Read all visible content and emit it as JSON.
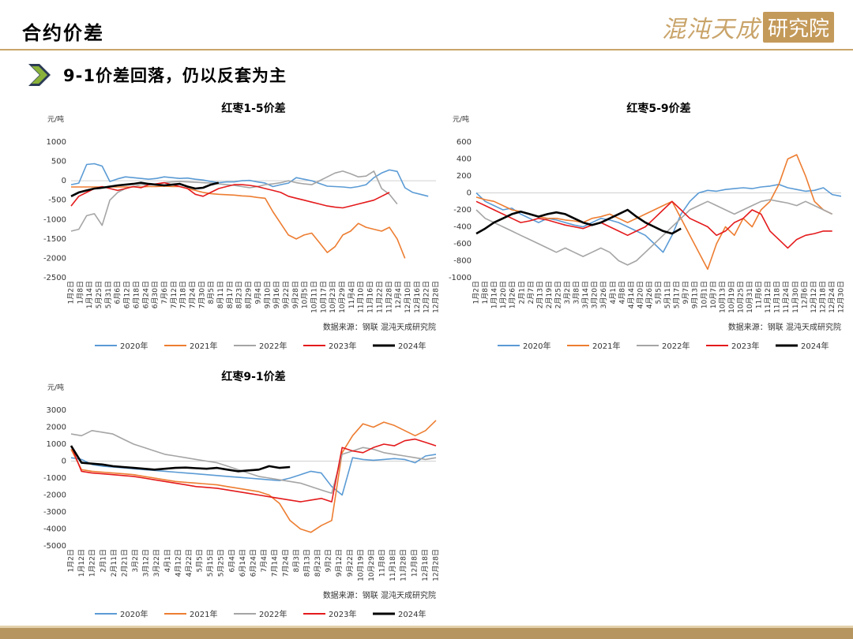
{
  "header": {
    "page_title": "合约价差",
    "logo_text": "混沌天成",
    "logo_box_text": "研究院",
    "subtitle": "9-1价差回落，仍以反套为主"
  },
  "colors": {
    "2020年": "#5b9bd5",
    "2021年": "#ed7d31",
    "2022年": "#a5a5a5",
    "2023年": "#e41a1c",
    "2024年": "#000000",
    "accent": "#c9a46a"
  },
  "chart_data": [
    {
      "type": "line",
      "title": "红枣1-5价差",
      "ylabel": "元/吨",
      "ylim": [
        -2500,
        1000
      ],
      "yticks": [
        1000,
        500,
        0,
        -500,
        -1000,
        -1500,
        -2000,
        -2500
      ],
      "xticks": [
        "1月2日",
        "1月8日",
        "1月14日",
        "5月25日",
        "5月31日",
        "6月6日",
        "6月12日",
        "6月18日",
        "6月24日",
        "6月30日",
        "7月6日",
        "7月12日",
        "7月18日",
        "7月24日",
        "7月30日",
        "8月5日",
        "8月11日",
        "8月17日",
        "8月23日",
        "8月29日",
        "9月4日",
        "9月10日",
        "9月16日",
        "9月22日",
        "9月28日",
        "10月5日",
        "10月11日",
        "10月17日",
        "10月23日",
        "10月29日",
        "11月4日",
        "11月10日",
        "11月16日",
        "11月22日",
        "11月28日",
        "12月4日",
        "12月10日",
        "12月16日",
        "12月22日",
        "12月28日"
      ],
      "source": "数据来源：钢联   混沌天成研究院",
      "series": [
        {
          "name": "2020年",
          "values": [
            -100,
            -60,
            420,
            440,
            380,
            -20,
            50,
            100,
            80,
            60,
            40,
            60,
            100,
            80,
            60,
            70,
            40,
            20,
            -20,
            -50,
            -30,
            -30,
            0,
            10,
            -30,
            -60,
            -150,
            -100,
            -60,
            80,
            40,
            0,
            -70,
            -140,
            -150,
            -160,
            -180,
            -150,
            -100,
            80,
            200,
            280,
            240,
            -180,
            -300,
            -350,
            -400
          ]
        },
        {
          "name": "2021年",
          "values": [
            -160,
            -160,
            -160,
            -160,
            -160,
            -160,
            -160,
            -160,
            -160,
            -160,
            -150,
            -150,
            -140,
            -150,
            -150,
            -200,
            -250,
            -300,
            -330,
            -350,
            -360,
            -370,
            -390,
            -400,
            -430,
            -450,
            -800,
            -1100,
            -1400,
            -1500,
            -1400,
            -1350,
            -1600,
            -1850,
            -1700,
            -1400,
            -1300,
            -1100,
            -1200,
            -1250,
            -1300,
            -1200,
            -1500,
            -2000
          ]
        },
        {
          "name": "2022年",
          "values": [
            -1300,
            -1250,
            -900,
            -850,
            -1150,
            -500,
            -300,
            -200,
            -150,
            -100,
            -100,
            -80,
            -50,
            -30,
            -20,
            -30,
            -40,
            -50,
            -60,
            -80,
            -100,
            -120,
            -150,
            -180,
            -150,
            -100,
            -80,
            -50,
            0,
            -50,
            -80,
            -100,
            0,
            100,
            200,
            250,
            180,
            100,
            120,
            250,
            -200,
            -350,
            -600
          ]
        },
        {
          "name": "2023年",
          "values": [
            -650,
            -400,
            -300,
            -200,
            -150,
            -200,
            -250,
            -200,
            -150,
            -180,
            -100,
            -80,
            -50,
            -100,
            -150,
            -200,
            -350,
            -400,
            -300,
            -200,
            -150,
            -100,
            -100,
            -120,
            -150,
            -200,
            -250,
            -300,
            -400,
            -450,
            -500,
            -550,
            -600,
            -650,
            -680,
            -700,
            -650,
            -600,
            -550,
            -500,
            -400,
            -300
          ]
        },
        {
          "name": "2024年",
          "values": [
            -400,
            -300,
            -250,
            -200,
            -180,
            -150,
            -120,
            -100,
            -80,
            -50,
            -80,
            -100,
            -120,
            -100,
            -80,
            -150,
            -200,
            -180,
            -100,
            -50
          ]
        }
      ],
      "x_extent": [
        0,
        47
      ]
    },
    {
      "type": "line",
      "title": "红枣5-9价差",
      "ylabel": "元/吨",
      "ylim": [
        -1000,
        600
      ],
      "yticks": [
        600,
        400,
        200,
        0,
        -200,
        -400,
        -600,
        -800,
        -1000
      ],
      "xticks": [
        "1月2日",
        "1月8日",
        "1月14日",
        "1月20日",
        "1月26日",
        "2月1日",
        "2月7日",
        "2月13日",
        "2月19日",
        "2月25日",
        "3月2日",
        "3月8日",
        "3月14日",
        "3月20日",
        "3月26日",
        "4月1日",
        "4月8日",
        "4月14日",
        "4月20日",
        "4月26日",
        "5月5日",
        "5月11日",
        "5月17日",
        "9月7日",
        "9月13日",
        "10月1日",
        "10月7日",
        "10月13日",
        "10月19日",
        "10月25日",
        "10月31日",
        "11月6日",
        "11月12日",
        "11月18日",
        "11月24日",
        "11月30日",
        "12月6日",
        "12月12日",
        "12月18日",
        "12月24日",
        "12月30日"
      ],
      "source": "数据来源：钢联   混沌天成研究院",
      "series": [
        {
          "name": "2020年",
          "values": [
            0,
            -100,
            -150,
            -200,
            -180,
            -250,
            -300,
            -350,
            -300,
            -320,
            -350,
            -380,
            -400,
            -350,
            -300,
            -320,
            -350,
            -400,
            -450,
            -500,
            -600,
            -700,
            -500,
            -250,
            -100,
            0,
            30,
            20,
            40,
            50,
            60,
            50,
            70,
            80,
            100,
            60,
            40,
            20,
            30,
            60,
            -20,
            -40
          ]
        },
        {
          "name": "2021年",
          "values": [
            -50,
            -80,
            -100,
            -150,
            -200,
            -220,
            -250,
            -280,
            -300,
            -300,
            -320,
            -330,
            -350,
            -300,
            -280,
            -250,
            -300,
            -350,
            -300,
            -250,
            -200,
            -150,
            -100,
            -300,
            -500,
            -700,
            -900,
            -600,
            -400,
            -500,
            -300,
            -400,
            -200,
            -100,
            100,
            400,
            450,
            200,
            -100,
            -200,
            -250
          ]
        },
        {
          "name": "2022年",
          "values": [
            -200,
            -300,
            -350,
            -400,
            -450,
            -500,
            -550,
            -600,
            -650,
            -700,
            -650,
            -700,
            -750,
            -700,
            -650,
            -700,
            -800,
            -850,
            -800,
            -700,
            -600,
            -500,
            -400,
            -300,
            -200,
            -150,
            -100,
            -150,
            -200,
            -250,
            -200,
            -150,
            -100,
            -80,
            -100,
            -120,
            -150,
            -100,
            -150,
            -200,
            -250
          ]
        },
        {
          "name": "2023年",
          "values": [
            -100,
            -150,
            -200,
            -250,
            -300,
            -350,
            -330,
            -300,
            -320,
            -350,
            -380,
            -400,
            -420,
            -380,
            -350,
            -400,
            -450,
            -500,
            -450,
            -400,
            -300,
            -200,
            -100,
            -200,
            -300,
            -350,
            -400,
            -500,
            -450,
            -350,
            -300,
            -200,
            -250,
            -450,
            -550,
            -650,
            -550,
            -500,
            -480,
            -450,
            -450
          ]
        },
        {
          "name": "2024年",
          "values": [
            -480,
            -420,
            -350,
            -300,
            -250,
            -220,
            -250,
            -280,
            -250,
            -230,
            -250,
            -300,
            -350,
            -380,
            -350,
            -300,
            -250,
            -200,
            -280,
            -350,
            -400,
            -450,
            -480,
            -420
          ]
        }
      ],
      "x_extent": [
        0,
        41
      ]
    },
    {
      "type": "line",
      "title": "红枣9-1价差",
      "ylabel": "元/吨",
      "ylim": [
        -5000,
        3000
      ],
      "yticks": [
        3000,
        2000,
        1000,
        0,
        -1000,
        -2000,
        -3000,
        -4000,
        -5000
      ],
      "xticks": [
        "1月2日",
        "1月12日",
        "1月22日",
        "2月1日",
        "2月11日",
        "2月21日",
        "3月2日",
        "3月12日",
        "3月22日",
        "4月1日",
        "4月12日",
        "4月22日",
        "5月5日",
        "5月15日",
        "5月25日",
        "6月4日",
        "6月14日",
        "6月24日",
        "7月4日",
        "7月14日",
        "7月24日",
        "8月3日",
        "8月13日",
        "8月23日",
        "9月2日",
        "9月12日",
        "9月22日",
        "10月19日",
        "10月29日",
        "11月8日",
        "11月18日",
        "11月28日",
        "12月8日",
        "12月18日",
        "12月28日"
      ],
      "source": "数据来源：钢联   混沌天成研究院",
      "series": [
        {
          "name": "2020年",
          "values": [
            200,
            100,
            -200,
            -300,
            -350,
            -400,
            -450,
            -500,
            -550,
            -600,
            -650,
            -700,
            -750,
            -800,
            -850,
            -900,
            -950,
            -1000,
            -1050,
            -1100,
            -1150,
            -1000,
            -800,
            -600,
            -700,
            -1500,
            -2000,
            200,
            100,
            50,
            100,
            150,
            100,
            -100,
            300,
            400
          ]
        },
        {
          "name": "2021年",
          "values": [
            700,
            -500,
            -600,
            -650,
            -700,
            -750,
            -800,
            -900,
            -1000,
            -1100,
            -1200,
            -1250,
            -1300,
            -1350,
            -1400,
            -1500,
            -1600,
            -1700,
            -1800,
            -2000,
            -2500,
            -3500,
            -4000,
            -4200,
            -3800,
            -3500,
            500,
            1500,
            2200,
            2000,
            2300,
            2100,
            1800,
            1500,
            1800,
            2400
          ]
        },
        {
          "name": "2022年",
          "values": [
            1600,
            1500,
            1800,
            1700,
            1600,
            1300,
            1000,
            800,
            600,
            400,
            300,
            200,
            100,
            0,
            -100,
            -300,
            -500,
            -700,
            -900,
            -1000,
            -1100,
            -1200,
            -1300,
            -1500,
            -1700,
            -1900,
            400,
            600,
            800,
            700,
            500,
            400,
            300,
            200,
            100,
            200
          ]
        },
        {
          "name": "2023年",
          "values": [
            900,
            -600,
            -700,
            -750,
            -800,
            -850,
            -900,
            -1000,
            -1100,
            -1200,
            -1300,
            -1400,
            -1500,
            -1550,
            -1600,
            -1700,
            -1800,
            -1900,
            -2000,
            -2100,
            -2200,
            -2300,
            -2400,
            -2300,
            -2200,
            -2400,
            800,
            600,
            500,
            800,
            1000,
            900,
            1200,
            1300,
            1100,
            900
          ]
        },
        {
          "name": "2024年",
          "values": [
            900,
            -100,
            -150,
            -200,
            -300,
            -350,
            -400,
            -450,
            -500,
            -450,
            -400,
            -380,
            -420,
            -450,
            -400,
            -500,
            -600,
            -550,
            -500,
            -300,
            -400,
            -350
          ]
        }
      ],
      "x_extent": [
        0,
        35
      ]
    }
  ]
}
